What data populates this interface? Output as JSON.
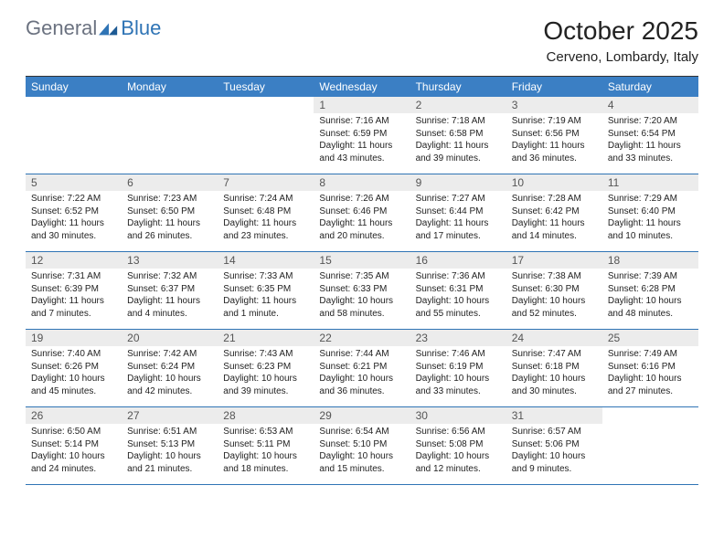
{
  "brand": {
    "part1": "General",
    "part2": "Blue"
  },
  "title": "October 2025",
  "location": "Cerveno, Lombardy, Italy",
  "colors": {
    "header_bar": "#3b7fc4",
    "week_border": "#2f74b5",
    "daynum_bg": "#ececec",
    "logo_gray": "#6b7280",
    "logo_blue": "#2f74b5"
  },
  "weekdays": [
    "Sunday",
    "Monday",
    "Tuesday",
    "Wednesday",
    "Thursday",
    "Friday",
    "Saturday"
  ],
  "weeks": [
    [
      {
        "n": "",
        "empty": true
      },
      {
        "n": "",
        "empty": true
      },
      {
        "n": "",
        "empty": true
      },
      {
        "n": "1",
        "sunrise": "7:16 AM",
        "sunset": "6:59 PM",
        "daylight": "11 hours and 43 minutes."
      },
      {
        "n": "2",
        "sunrise": "7:18 AM",
        "sunset": "6:58 PM",
        "daylight": "11 hours and 39 minutes."
      },
      {
        "n": "3",
        "sunrise": "7:19 AM",
        "sunset": "6:56 PM",
        "daylight": "11 hours and 36 minutes."
      },
      {
        "n": "4",
        "sunrise": "7:20 AM",
        "sunset": "6:54 PM",
        "daylight": "11 hours and 33 minutes."
      }
    ],
    [
      {
        "n": "5",
        "sunrise": "7:22 AM",
        "sunset": "6:52 PM",
        "daylight": "11 hours and 30 minutes."
      },
      {
        "n": "6",
        "sunrise": "7:23 AM",
        "sunset": "6:50 PM",
        "daylight": "11 hours and 26 minutes."
      },
      {
        "n": "7",
        "sunrise": "7:24 AM",
        "sunset": "6:48 PM",
        "daylight": "11 hours and 23 minutes."
      },
      {
        "n": "8",
        "sunrise": "7:26 AM",
        "sunset": "6:46 PM",
        "daylight": "11 hours and 20 minutes."
      },
      {
        "n": "9",
        "sunrise": "7:27 AM",
        "sunset": "6:44 PM",
        "daylight": "11 hours and 17 minutes."
      },
      {
        "n": "10",
        "sunrise": "7:28 AM",
        "sunset": "6:42 PM",
        "daylight": "11 hours and 14 minutes."
      },
      {
        "n": "11",
        "sunrise": "7:29 AM",
        "sunset": "6:40 PM",
        "daylight": "11 hours and 10 minutes."
      }
    ],
    [
      {
        "n": "12",
        "sunrise": "7:31 AM",
        "sunset": "6:39 PM",
        "daylight": "11 hours and 7 minutes."
      },
      {
        "n": "13",
        "sunrise": "7:32 AM",
        "sunset": "6:37 PM",
        "daylight": "11 hours and 4 minutes."
      },
      {
        "n": "14",
        "sunrise": "7:33 AM",
        "sunset": "6:35 PM",
        "daylight": "11 hours and 1 minute."
      },
      {
        "n": "15",
        "sunrise": "7:35 AM",
        "sunset": "6:33 PM",
        "daylight": "10 hours and 58 minutes."
      },
      {
        "n": "16",
        "sunrise": "7:36 AM",
        "sunset": "6:31 PM",
        "daylight": "10 hours and 55 minutes."
      },
      {
        "n": "17",
        "sunrise": "7:38 AM",
        "sunset": "6:30 PM",
        "daylight": "10 hours and 52 minutes."
      },
      {
        "n": "18",
        "sunrise": "7:39 AM",
        "sunset": "6:28 PM",
        "daylight": "10 hours and 48 minutes."
      }
    ],
    [
      {
        "n": "19",
        "sunrise": "7:40 AM",
        "sunset": "6:26 PM",
        "daylight": "10 hours and 45 minutes."
      },
      {
        "n": "20",
        "sunrise": "7:42 AM",
        "sunset": "6:24 PM",
        "daylight": "10 hours and 42 minutes."
      },
      {
        "n": "21",
        "sunrise": "7:43 AM",
        "sunset": "6:23 PM",
        "daylight": "10 hours and 39 minutes."
      },
      {
        "n": "22",
        "sunrise": "7:44 AM",
        "sunset": "6:21 PM",
        "daylight": "10 hours and 36 minutes."
      },
      {
        "n": "23",
        "sunrise": "7:46 AM",
        "sunset": "6:19 PM",
        "daylight": "10 hours and 33 minutes."
      },
      {
        "n": "24",
        "sunrise": "7:47 AM",
        "sunset": "6:18 PM",
        "daylight": "10 hours and 30 minutes."
      },
      {
        "n": "25",
        "sunrise": "7:49 AM",
        "sunset": "6:16 PM",
        "daylight": "10 hours and 27 minutes."
      }
    ],
    [
      {
        "n": "26",
        "sunrise": "6:50 AM",
        "sunset": "5:14 PM",
        "daylight": "10 hours and 24 minutes."
      },
      {
        "n": "27",
        "sunrise": "6:51 AM",
        "sunset": "5:13 PM",
        "daylight": "10 hours and 21 minutes."
      },
      {
        "n": "28",
        "sunrise": "6:53 AM",
        "sunset": "5:11 PM",
        "daylight": "10 hours and 18 minutes."
      },
      {
        "n": "29",
        "sunrise": "6:54 AM",
        "sunset": "5:10 PM",
        "daylight": "10 hours and 15 minutes."
      },
      {
        "n": "30",
        "sunrise": "6:56 AM",
        "sunset": "5:08 PM",
        "daylight": "10 hours and 12 minutes."
      },
      {
        "n": "31",
        "sunrise": "6:57 AM",
        "sunset": "5:06 PM",
        "daylight": "10 hours and 9 minutes."
      },
      {
        "n": "",
        "empty": true
      }
    ]
  ],
  "labels": {
    "sunrise": "Sunrise:",
    "sunset": "Sunset:",
    "daylight": "Daylight:"
  }
}
